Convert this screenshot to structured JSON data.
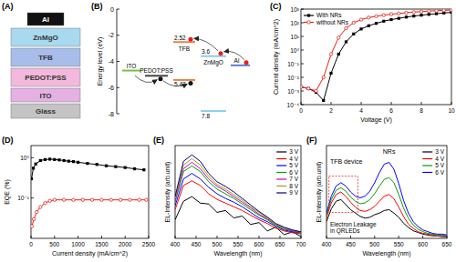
{
  "device_stack": {
    "title": "(A)",
    "layers": [
      {
        "name": "Al",
        "color": "#111111"
      },
      {
        "name": "ZnMgO",
        "color": "#a9d9ef"
      },
      {
        "name": "TFB",
        "color": "#a9bdea"
      },
      {
        "name": "PEDOT:PSS",
        "color": "#f2b9dc"
      },
      {
        "name": "ITO",
        "color": "#e4b1e2"
      },
      {
        "name": "Glass",
        "color": "#c4c4c4"
      }
    ]
  },
  "energy_diagram": {
    "title": "(B)",
    "ylabel": "Energy level (eV)",
    "ylim": [
      -8,
      0
    ],
    "yticks": [
      -8,
      -6,
      -4,
      -2,
      0
    ],
    "levels": [
      {
        "name": "ITO",
        "color": "#7ac143",
        "values": [
          -4.7
        ]
      },
      {
        "name": "PEDOT:PSS",
        "color": "#444444",
        "values": [
          -5.1
        ]
      },
      {
        "name": "TFB",
        "color": "#e8824a",
        "values": [
          -2.52,
          -5.42
        ],
        "value_labels": [
          "2.52",
          "5.42"
        ]
      },
      {
        "name": "ZnMgO",
        "color": "#8fcbea",
        "values": [
          -3.6,
          -7.8
        ],
        "value_labels": [
          "3.6",
          "7.8"
        ]
      },
      {
        "name": "Al",
        "color": "#5a7fd6",
        "values": [
          -4.3
        ]
      }
    ]
  },
  "chart_data": [
    {
      "type": "line",
      "title": "(C)",
      "xlabel": "Voltage (V)",
      "ylabel": "Current density (mA/cm^2)",
      "log": "y",
      "legend": "upper left",
      "xlim": [
        0,
        10
      ],
      "xticks": [
        0,
        2,
        4,
        6,
        8,
        10
      ],
      "ylim": [
        0.0001,
        1000
      ],
      "yticks": [
        {
          "value": 0.0001,
          "label": "10⁻⁴"
        },
        {
          "value": 0.001,
          "label": "10⁻³"
        },
        {
          "value": 0.01,
          "label": "10⁻²"
        },
        {
          "value": 0.1,
          "label": "10⁻¹"
        },
        {
          "value": 1,
          "label": "10⁰"
        },
        {
          "value": 10,
          "label": "10¹"
        },
        {
          "value": 100,
          "label": "10²"
        },
        {
          "value": 1000,
          "label": "10³"
        }
      ],
      "x": [
        0,
        0.5,
        1,
        1.5,
        2,
        2.5,
        3,
        3.5,
        4,
        4.5,
        5,
        5.5,
        6,
        6.5,
        7,
        7.5,
        8,
        8.5,
        9,
        9.5,
        10
      ],
      "series": [
        {
          "name": "With NRs",
          "color": "#000000",
          "marker": "square",
          "values": [
            0.002,
            0.0015,
            0.0008,
            0.0002,
            0.02,
            0.5,
            4,
            15,
            35,
            60,
            90,
            130,
            170,
            210,
            260,
            310,
            360,
            410,
            460,
            520,
            580
          ]
        },
        {
          "name": "without NRs",
          "color": "#e8201c",
          "marker": "circle",
          "values": [
            0.002,
            0.0015,
            0.001,
            0.01,
            0.5,
            8,
            40,
            100,
            170,
            240,
            300,
            360,
            420,
            480,
            540,
            600,
            660,
            710,
            760,
            810,
            860
          ]
        }
      ]
    },
    {
      "type": "line",
      "title": "(D)",
      "xlabel": "Current density (mA/cm^2)",
      "ylabel": "EQE (%)",
      "log": "y",
      "xlim": [
        0,
        2500
      ],
      "xticks": [
        0,
        500,
        1000,
        1500,
        2000,
        2500
      ],
      "ylim": [
        0.01,
        2
      ],
      "yticks": [
        {
          "value": 0.1,
          "label": "10⁻¹"
        },
        {
          "value": 1,
          "label": "10⁰"
        }
      ],
      "series": [
        {
          "color": "#000000",
          "marker": "square",
          "x": [
            10,
            50,
            100,
            200,
            300,
            400,
            500,
            600,
            700,
            800,
            900,
            1000,
            1200,
            1400,
            1600,
            1800,
            2000,
            2200,
            2400
          ],
          "values": [
            0.3,
            0.55,
            0.7,
            0.85,
            0.9,
            0.92,
            0.9,
            0.88,
            0.85,
            0.82,
            0.8,
            0.77,
            0.72,
            0.68,
            0.63,
            0.6,
            0.57,
            0.53,
            0.5
          ]
        },
        {
          "color": "#e8201c",
          "marker": "circle",
          "x": [
            20,
            60,
            120,
            200,
            300,
            400,
            500,
            700,
            900,
            1100,
            1300,
            1500,
            1700,
            1900,
            2100,
            2300,
            2450
          ],
          "values": [
            0.02,
            0.03,
            0.045,
            0.06,
            0.075,
            0.085,
            0.09,
            0.09,
            0.09,
            0.09,
            0.09,
            0.09,
            0.09,
            0.09,
            0.09,
            0.09,
            0.09
          ]
        }
      ]
    },
    {
      "type": "line",
      "title": "(E)",
      "xlabel": "Wavelength (nm)",
      "ylabel": "EL-Intensity (arb.unit)",
      "tick_labels": "x",
      "legend": "upper right",
      "xlim": [
        400,
        700
      ],
      "xticks": [
        400,
        450,
        500,
        550,
        600,
        650,
        700
      ],
      "ylim": [
        0,
        1
      ],
      "x": [
        400,
        420,
        440,
        460,
        480,
        500,
        520,
        540,
        560,
        580,
        600,
        620,
        640,
        660,
        680,
        700
      ],
      "series": [
        {
          "name": "3 V",
          "color": "#000000",
          "values": [
            0.2,
            0.4,
            0.45,
            0.38,
            0.37,
            0.28,
            0.3,
            0.22,
            0.24,
            0.15,
            0.17,
            0.08,
            0.12,
            0.04,
            0.07,
            0.02
          ]
        },
        {
          "name": "4 V",
          "color": "#ff0000",
          "values": [
            0.31,
            0.57,
            0.62,
            0.57,
            0.48,
            0.42,
            0.38,
            0.34,
            0.3,
            0.25,
            0.2,
            0.16,
            0.11,
            0.08,
            0.06,
            0.05
          ]
        },
        {
          "name": "5 V",
          "color": "#0000ff",
          "values": [
            0.35,
            0.64,
            0.7,
            0.64,
            0.55,
            0.48,
            0.43,
            0.39,
            0.34,
            0.28,
            0.22,
            0.18,
            0.13,
            0.09,
            0.07,
            0.06
          ]
        },
        {
          "name": "6 V",
          "color": "#00a000",
          "values": [
            0.39,
            0.72,
            0.78,
            0.72,
            0.61,
            0.53,
            0.48,
            0.43,
            0.37,
            0.31,
            0.25,
            0.2,
            0.14,
            0.1,
            0.08,
            0.06
          ]
        },
        {
          "name": "7 V",
          "color": "#cc00cc",
          "values": [
            0.41,
            0.75,
            0.82,
            0.75,
            0.64,
            0.56,
            0.51,
            0.45,
            0.39,
            0.33,
            0.26,
            0.21,
            0.15,
            0.11,
            0.08,
            0.07
          ]
        },
        {
          "name": "8 V",
          "color": "#a0a000",
          "values": [
            0.43,
            0.79,
            0.86,
            0.79,
            0.67,
            0.58,
            0.53,
            0.47,
            0.41,
            0.34,
            0.28,
            0.22,
            0.15,
            0.11,
            0.09,
            0.07
          ]
        },
        {
          "name": "9 V",
          "color": "#000080",
          "values": [
            0.45,
            0.83,
            0.9,
            0.83,
            0.7,
            0.61,
            0.56,
            0.5,
            0.43,
            0.36,
            0.29,
            0.23,
            0.16,
            0.12,
            0.09,
            0.07
          ]
        }
      ]
    },
    {
      "type": "line",
      "title": "(F)",
      "xlabel": "Wavelength (nm)",
      "ylabel": "EL-Intensity (arb.unit)",
      "tick_labels": "x",
      "legend": "upper right",
      "xlim": [
        400,
        650
      ],
      "xticks": [
        400,
        450,
        500,
        550,
        600,
        650
      ],
      "ylim": [
        0,
        1.1
      ],
      "x": [
        400,
        410,
        420,
        430,
        440,
        450,
        460,
        470,
        480,
        490,
        500,
        510,
        520,
        530,
        540,
        550,
        560,
        570,
        580,
        590,
        600,
        610,
        620,
        630,
        640,
        650
      ],
      "series": [
        {
          "name": "3 V",
          "color": "#000000",
          "values": [
            0.2,
            0.35,
            0.44,
            0.46,
            0.4,
            0.34,
            0.3,
            0.26,
            0.24,
            0.25,
            0.28,
            0.3,
            0.33,
            0.34,
            0.3,
            0.25,
            0.18,
            0.13,
            0.09,
            0.07,
            0.05,
            0.04,
            0.03,
            0.03,
            0.02,
            0.02
          ]
        },
        {
          "name": "4 V",
          "color": "#ff0000",
          "values": [
            0.25,
            0.42,
            0.52,
            0.55,
            0.5,
            0.43,
            0.37,
            0.33,
            0.32,
            0.34,
            0.38,
            0.44,
            0.5,
            0.52,
            0.47,
            0.37,
            0.26,
            0.17,
            0.12,
            0.08,
            0.06,
            0.05,
            0.04,
            0.03,
            0.03,
            0.03
          ]
        },
        {
          "name": "5 V",
          "color": "#00a000",
          "values": [
            0.28,
            0.46,
            0.57,
            0.6,
            0.56,
            0.49,
            0.44,
            0.41,
            0.42,
            0.46,
            0.53,
            0.62,
            0.7,
            0.72,
            0.66,
            0.52,
            0.36,
            0.24,
            0.16,
            0.11,
            0.08,
            0.06,
            0.05,
            0.04,
            0.04,
            0.03
          ]
        },
        {
          "name": "6 V",
          "color": "#0000ff",
          "values": [
            0.3,
            0.5,
            0.62,
            0.66,
            0.62,
            0.55,
            0.5,
            0.48,
            0.5,
            0.56,
            0.66,
            0.78,
            0.88,
            0.9,
            0.82,
            0.65,
            0.45,
            0.3,
            0.2,
            0.14,
            0.1,
            0.08,
            0.06,
            0.05,
            0.05,
            0.04
          ]
        }
      ],
      "annotations": [
        {
          "text": "TFB device"
        },
        {
          "text": "NRs"
        },
        {
          "lines": [
            "Electron Leakage",
            "in QRLEDs"
          ]
        }
      ]
    }
  ]
}
